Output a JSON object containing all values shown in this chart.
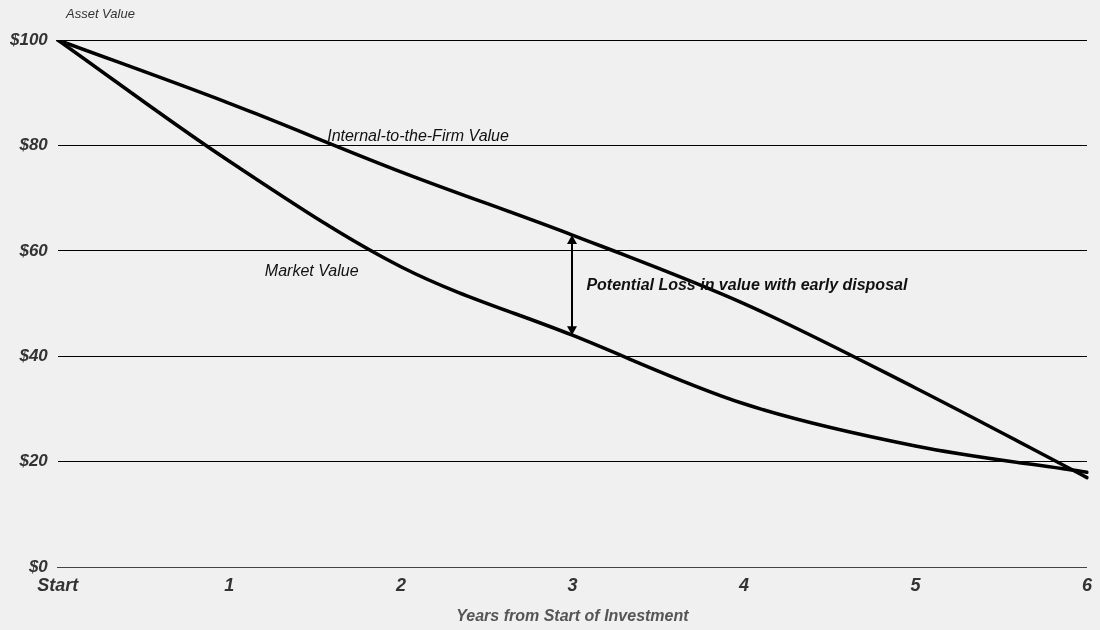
{
  "chart_data": {
    "type": "line",
    "ylabel": "Asset Value",
    "xlabel": "Years from Start of Investment",
    "categories": [
      "Start",
      "1",
      "2",
      "3",
      "4",
      "5",
      "6"
    ],
    "series": [
      {
        "name": "Internal-to-the-Firm Value",
        "color": "#000000",
        "values": [
          100,
          88,
          75,
          63,
          50,
          34,
          17
        ]
      },
      {
        "name": "Market Value",
        "color": "#000000",
        "values": [
          100,
          77,
          57,
          44,
          31,
          23,
          18
        ]
      }
    ],
    "ylim": [
      0,
      100
    ],
    "yticks": [
      {
        "value": 0,
        "label": "$0"
      },
      {
        "value": 20,
        "label": "$20"
      },
      {
        "value": 40,
        "label": "$40"
      },
      {
        "value": 60,
        "label": "$60"
      },
      {
        "value": 80,
        "label": "$80"
      },
      {
        "value": 100,
        "label": "$100"
      }
    ],
    "grid": "y",
    "legend": false,
    "marker": "none",
    "line_style": "solid",
    "annotations": [
      "Potential Loss in value with early disposal"
    ]
  }
}
